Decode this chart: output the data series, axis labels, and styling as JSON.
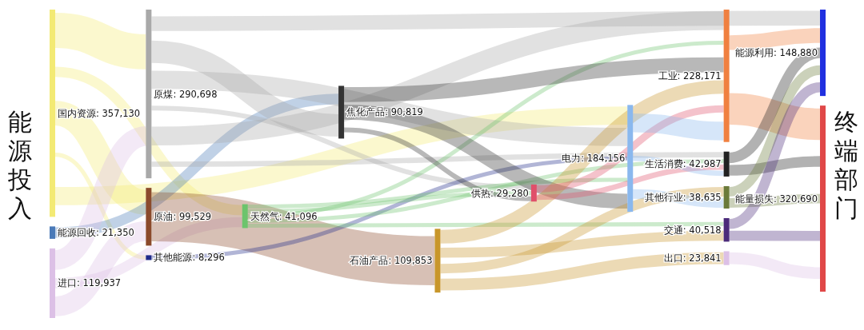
{
  "chart_data": {
    "type": "other",
    "ylabel": "能源投入",
    "y2label": "终端部门",
    "categories": [
      "国内资源",
      "能源回收",
      "进口",
      "原煤",
      "原油",
      "其他能源",
      "天然气",
      "焦化产品",
      "石油产品",
      "供热",
      "电力",
      "工业",
      "生活消费",
      "其他行业",
      "交通",
      "出口",
      "能源利用",
      "能量损失"
    ],
    "value_labels": [
      ": 357,130",
      ": 21,350",
      ": 119,937",
      ": 290,698",
      ": 99,529",
      ": 8,296",
      ": 41,096",
      ": 90,819",
      ": 109,853",
      ": 29,280",
      ": 184,156",
      ": 228,171",
      ": 42,987",
      ": 38,635",
      ": 40,518",
      ": 23,841",
      ": 148,880",
      ": 320,690"
    ],
    "values": [
      357130,
      21350,
      119937,
      290698,
      99529,
      8296,
      41096,
      90819,
      109853,
      29280,
      184156,
      228171,
      42987,
      38635,
      40518,
      23841,
      148880,
      320690
    ],
    "colors": [
      "#f3ea74",
      "#4a7ab8",
      "#dcc0e6",
      "#a9a9a9",
      "#8b4a2b",
      "#1f2a8a",
      "#6cc46c",
      "#333333",
      "#c8962a",
      "#e0506a",
      "#8ab8ee",
      "#f08040",
      "#222222",
      "#6b7a3a",
      "#4a2a7a",
      "#dcc0e6",
      "#2030e0",
      "#e04848"
    ]
  }
}
